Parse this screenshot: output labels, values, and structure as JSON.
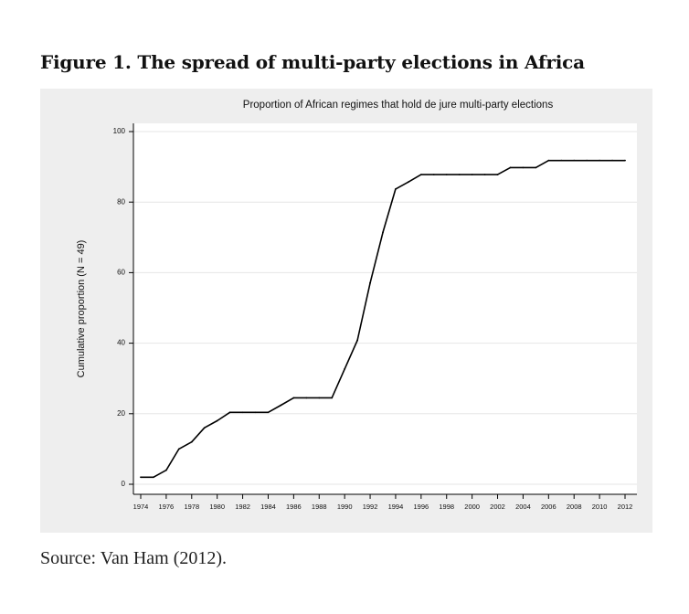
{
  "figure": {
    "title": "Figure 1. The spread of multi-party elections in Africa",
    "source": "Source: Van Ham (2012)."
  },
  "chart_data": {
    "type": "line",
    "title": "Proportion of African regimes that hold de jure multi-party elections",
    "xlabel": "",
    "ylabel": "Cumulative proportion (N = 49)",
    "xlim": [
      1974,
      2012
    ],
    "ylim": [
      0,
      100
    ],
    "x_ticks": [
      "1974",
      "1976",
      "1978",
      "1980",
      "1982",
      "1984",
      "1986",
      "1988",
      "1990",
      "1992",
      "1994",
      "1996",
      "1998",
      "2000",
      "2002",
      "2004",
      "2006",
      "2008",
      "2010",
      "2012"
    ],
    "y_ticks": [
      "0",
      "20",
      "40",
      "60",
      "80",
      "100"
    ],
    "grid": true,
    "series": [
      {
        "x": [
          1974,
          1975,
          1976,
          1977,
          1978,
          1979,
          1980,
          1981,
          1982,
          1983,
          1984,
          1985,
          1986,
          1987,
          1988,
          1989,
          1990,
          1991,
          1992,
          1993,
          1994,
          1995,
          1996,
          1997,
          1998,
          1999,
          2000,
          2001,
          2002,
          2003,
          2004,
          2005,
          2006,
          2007,
          2008,
          2009,
          2010,
          2011,
          2012
        ],
        "y": [
          2,
          2,
          4,
          10,
          12,
          16,
          18,
          20.4,
          20.4,
          20.4,
          20.4,
          22.4,
          24.5,
          24.5,
          24.5,
          24.5,
          32.7,
          40.8,
          57.1,
          71.4,
          83.7,
          85.7,
          87.8,
          87.8,
          87.8,
          87.8,
          87.8,
          87.8,
          87.8,
          89.8,
          89.8,
          89.8,
          91.8,
          91.8,
          91.8,
          91.8,
          91.8,
          91.8,
          91.8
        ],
        "color": "#000000"
      }
    ]
  }
}
